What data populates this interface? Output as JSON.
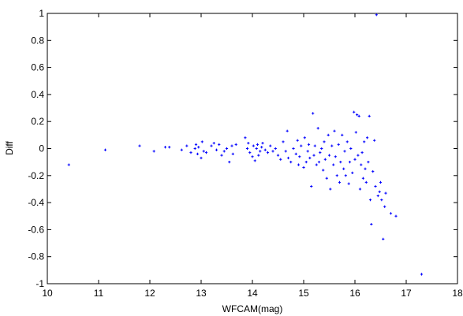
{
  "chart_data": {
    "type": "scatter",
    "xlabel": "WFCAM(mag)",
    "ylabel": "Diff",
    "xlim": [
      10,
      18
    ],
    "ylim": [
      -1,
      1
    ],
    "x_ticks": [
      "10",
      "11",
      "12",
      "13",
      "14",
      "15",
      "16",
      "17",
      "18"
    ],
    "y_ticks": [
      "-1",
      "-0.8",
      "-0.6",
      "-0.4",
      "-0.2",
      "0",
      "0.2",
      "0.4",
      "0.6",
      "0.8",
      "1"
    ],
    "grid": false,
    "marker_color": "#0000ff",
    "points": [
      [
        10.42,
        -0.12
      ],
      [
        11.13,
        -0.01
      ],
      [
        11.8,
        0.02
      ],
      [
        12.08,
        -0.02
      ],
      [
        12.3,
        0.01
      ],
      [
        12.38,
        0.01
      ],
      [
        12.62,
        -0.01
      ],
      [
        12.72,
        0.02
      ],
      [
        12.8,
        -0.03
      ],
      [
        12.88,
        0.0
      ],
      [
        12.9,
        0.03
      ],
      [
        12.93,
        -0.04
      ],
      [
        12.95,
        0.01
      ],
      [
        13.0,
        -0.07
      ],
      [
        13.02,
        0.05
      ],
      [
        13.05,
        -0.02
      ],
      [
        13.1,
        -0.03
      ],
      [
        13.2,
        0.02
      ],
      [
        13.25,
        0.04
      ],
      [
        13.3,
        -0.01
      ],
      [
        13.35,
        0.03
      ],
      [
        13.4,
        -0.05
      ],
      [
        13.45,
        -0.02
      ],
      [
        13.5,
        0.0
      ],
      [
        13.55,
        -0.1
      ],
      [
        13.6,
        0.02
      ],
      [
        13.62,
        -0.04
      ],
      [
        13.68,
        0.03
      ],
      [
        13.86,
        0.08
      ],
      [
        13.9,
        0.0
      ],
      [
        13.92,
        0.04
      ],
      [
        13.95,
        -0.03
      ],
      [
        14.0,
        -0.06
      ],
      [
        14.02,
        0.02
      ],
      [
        14.05,
        -0.09
      ],
      [
        14.08,
        0.0
      ],
      [
        14.1,
        0.03
      ],
      [
        14.12,
        -0.05
      ],
      [
        14.15,
        -0.02
      ],
      [
        14.18,
        0.01
      ],
      [
        14.2,
        0.04
      ],
      [
        14.25,
        -0.01
      ],
      [
        14.3,
        -0.03
      ],
      [
        14.35,
        0.02
      ],
      [
        14.4,
        -0.02
      ],
      [
        14.45,
        0.0
      ],
      [
        14.5,
        -0.05
      ],
      [
        14.55,
        -0.08
      ],
      [
        14.6,
        0.05
      ],
      [
        14.65,
        -0.02
      ],
      [
        14.68,
        0.13
      ],
      [
        14.7,
        -0.07
      ],
      [
        14.75,
        -0.1
      ],
      [
        14.8,
        0.0
      ],
      [
        14.85,
        -0.04
      ],
      [
        14.88,
        0.06
      ],
      [
        14.9,
        -0.12
      ],
      [
        14.92,
        -0.06
      ],
      [
        14.95,
        0.02
      ],
      [
        15.0,
        -0.14
      ],
      [
        15.02,
        0.08
      ],
      [
        15.05,
        -0.1
      ],
      [
        15.08,
        -0.02
      ],
      [
        15.1,
        0.03
      ],
      [
        15.12,
        -0.07
      ],
      [
        15.15,
        -0.28
      ],
      [
        15.18,
        0.26
      ],
      [
        15.2,
        -0.05
      ],
      [
        15.22,
        0.02
      ],
      [
        15.25,
        -0.12
      ],
      [
        15.28,
        0.15
      ],
      [
        15.3,
        -0.1
      ],
      [
        15.32,
        -0.03
      ],
      [
        15.35,
        0.0
      ],
      [
        15.38,
        -0.16
      ],
      [
        15.4,
        0.05
      ],
      [
        15.42,
        -0.08
      ],
      [
        15.45,
        -0.22
      ],
      [
        15.48,
        0.1
      ],
      [
        15.5,
        -0.05
      ],
      [
        15.52,
        -0.3
      ],
      [
        15.55,
        0.02
      ],
      [
        15.58,
        -0.12
      ],
      [
        15.6,
        0.13
      ],
      [
        15.62,
        -0.06
      ],
      [
        15.65,
        -0.2
      ],
      [
        15.68,
        0.03
      ],
      [
        15.7,
        -0.25
      ],
      [
        15.72,
        -0.1
      ],
      [
        15.75,
        0.1
      ],
      [
        15.78,
        -0.15
      ],
      [
        15.8,
        -0.02
      ],
      [
        15.82,
        -0.2
      ],
      [
        15.85,
        0.05
      ],
      [
        15.88,
        -0.26
      ],
      [
        15.9,
        -0.1
      ],
      [
        15.92,
        0.0
      ],
      [
        15.95,
        -0.18
      ],
      [
        15.98,
        0.27
      ],
      [
        16.0,
        -0.08
      ],
      [
        16.02,
        0.12
      ],
      [
        16.04,
        0.25
      ],
      [
        16.06,
        -0.05
      ],
      [
        16.08,
        0.24
      ],
      [
        16.1,
        -0.3
      ],
      [
        16.12,
        -0.12
      ],
      [
        16.14,
        -0.03
      ],
      [
        16.16,
        -0.22
      ],
      [
        16.18,
        0.05
      ],
      [
        16.2,
        -0.15
      ],
      [
        16.22,
        -0.25
      ],
      [
        16.24,
        0.08
      ],
      [
        16.26,
        -0.1
      ],
      [
        16.28,
        0.24
      ],
      [
        16.3,
        -0.38
      ],
      [
        16.32,
        -0.56
      ],
      [
        16.35,
        -0.17
      ],
      [
        16.38,
        0.06
      ],
      [
        16.4,
        -0.28
      ],
      [
        16.42,
        0.99
      ],
      [
        16.45,
        -0.35
      ],
      [
        16.48,
        -0.32
      ],
      [
        16.5,
        -0.25
      ],
      [
        16.52,
        -0.38
      ],
      [
        16.55,
        -0.67
      ],
      [
        16.58,
        -0.43
      ],
      [
        16.6,
        -0.33
      ],
      [
        16.7,
        -0.48
      ],
      [
        16.8,
        -0.5
      ],
      [
        17.3,
        -0.93
      ]
    ]
  }
}
